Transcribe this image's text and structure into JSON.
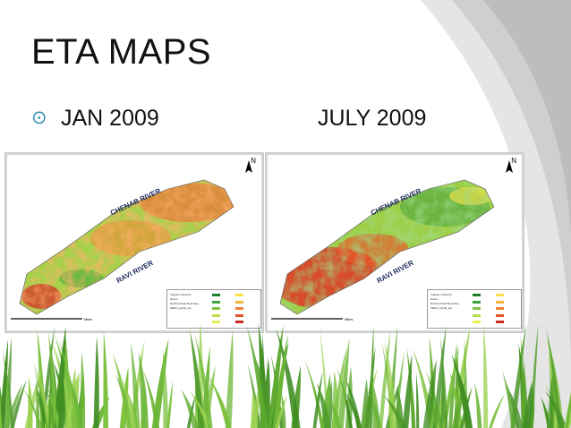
{
  "slide": {
    "title": "ETA MAPS",
    "bullet_icon": "circle-target-bullet-icon",
    "accent_color": "#2e8fb2"
  },
  "maps": [
    {
      "label": "JAN 2009",
      "river_labels": [
        "CHENAB RIVER",
        "RAVI RIVER"
      ],
      "legend": {
        "title": "MEAN_jan09_eta",
        "entries": [
          "Irrigation Network",
          "Rivers",
          "Rechna Doab Boundary"
        ],
        "colors": [
          "#1a7f2a",
          "#3ea33a",
          "#7fc242",
          "#b9dc4a",
          "#e6ef56",
          "#f7e04a",
          "#f6b43c",
          "#ef8232",
          "#e4542a",
          "#cc2a20"
        ]
      },
      "dominant_palette": "mixed-green-orange"
    },
    {
      "label": "JULY 2009",
      "river_labels": [
        "CHENAB RIVER",
        "RAVI RIVER"
      ],
      "legend": {
        "title": "MEAN_july09_eta",
        "entries": [
          "Irrigation Network",
          "Rivers",
          "Rechna Doab Boundary"
        ],
        "colors": [
          "#1a7f2a",
          "#3ea33a",
          "#7fc242",
          "#b9dc4a",
          "#e6ef56",
          "#f7e04a",
          "#f6b43c",
          "#ef8232",
          "#e4542a",
          "#cc2a20"
        ]
      },
      "dominant_palette": "red-southwest-green-northeast"
    }
  ],
  "map_furniture": {
    "north_label": "N",
    "scale_unit": "Miles"
  }
}
